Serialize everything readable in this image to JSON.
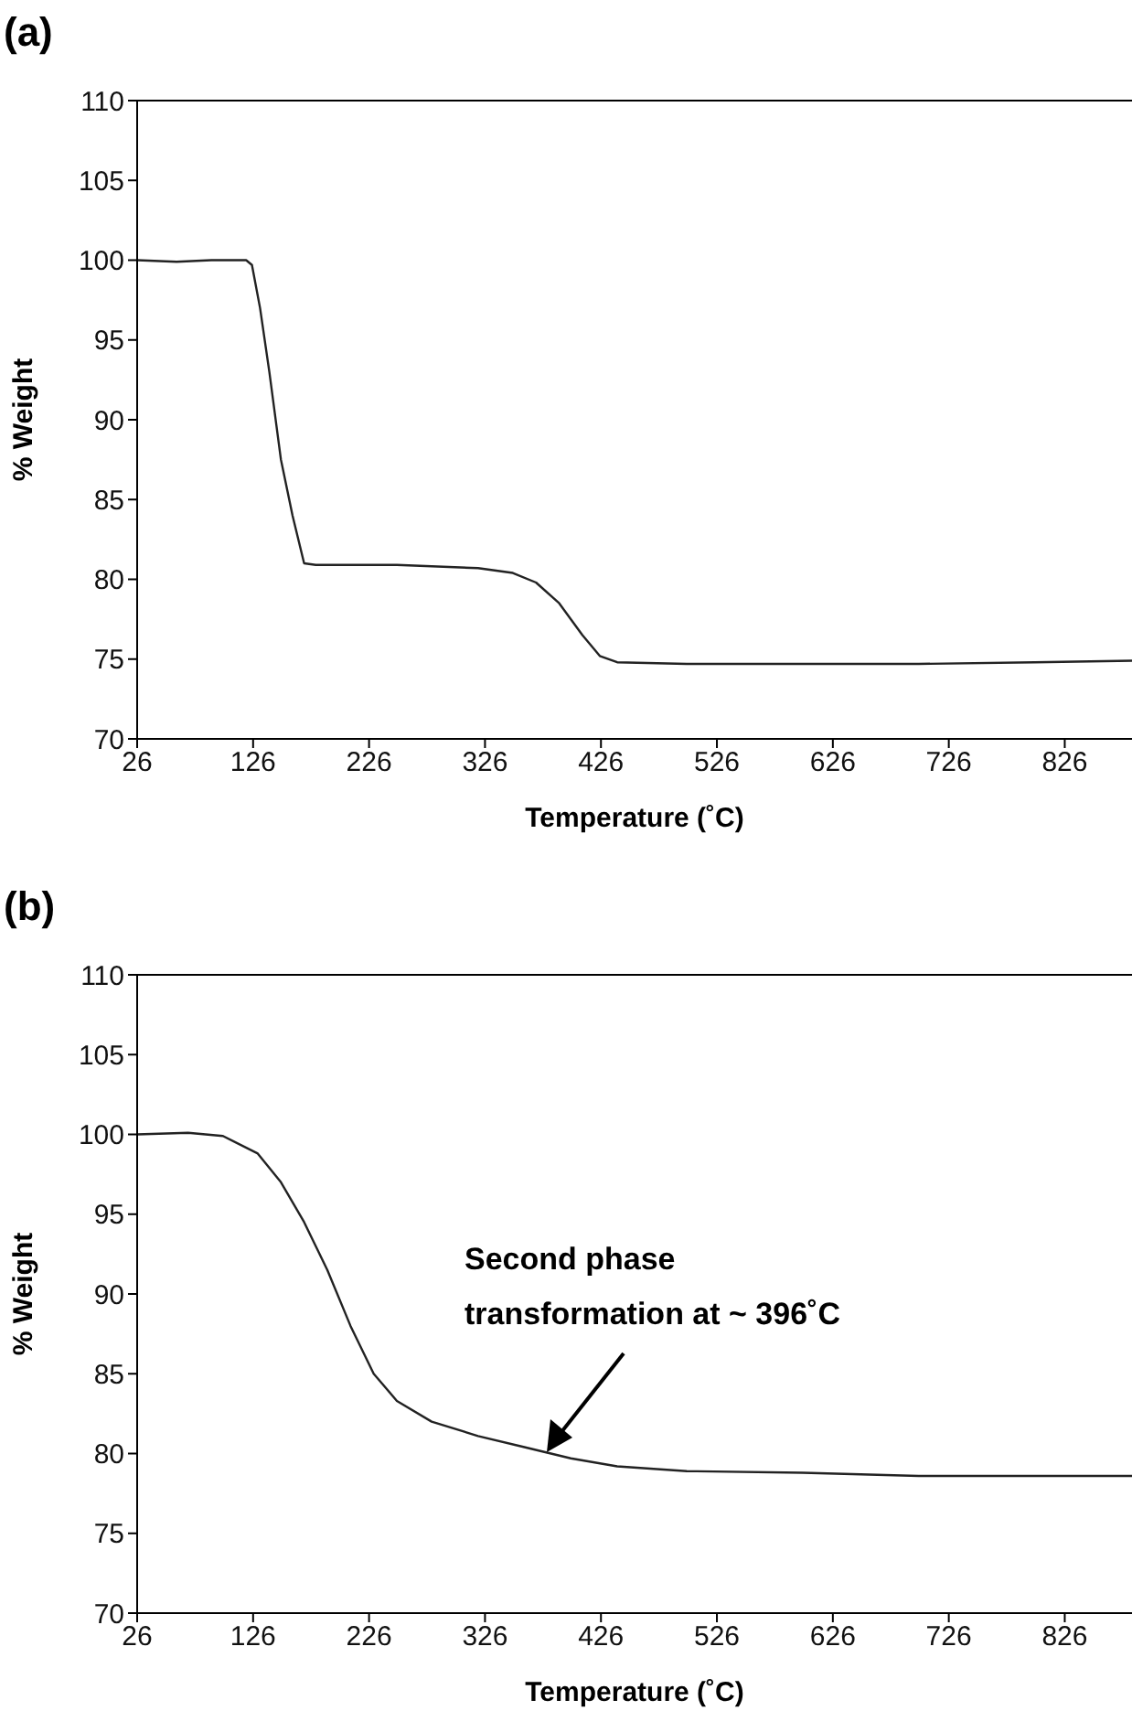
{
  "chart_data": [
    {
      "type": "line",
      "title": "(a)",
      "xlabel": "Temperature (˚C)",
      "ylabel": "% Weight",
      "color": "#222222",
      "x": [
        26,
        60,
        90,
        120,
        125,
        132,
        140,
        150,
        160,
        170,
        180,
        250,
        320,
        350,
        370,
        390,
        410,
        425,
        440,
        500,
        600,
        700,
        800,
        884
      ],
      "values": [
        100,
        99.9,
        100,
        100,
        99.7,
        97,
        93,
        87.5,
        84,
        81,
        80.9,
        80.9,
        80.7,
        80.4,
        79.8,
        78.5,
        76.5,
        75.2,
        74.8,
        74.7,
        74.7,
        74.7,
        74.8,
        74.9
      ],
      "xlim": [
        26,
        884
      ],
      "xticks": [
        26,
        126,
        226,
        326,
        426,
        526,
        626,
        726,
        826
      ],
      "ylim": [
        70,
        110
      ],
      "yticks": [
        70,
        75,
        80,
        85,
        90,
        95,
        100,
        105,
        110
      ]
    },
    {
      "type": "line",
      "title": "(b)",
      "xlabel": "Temperature (˚C)",
      "ylabel": "% Weight",
      "color": "#222222",
      "x": [
        26,
        70,
        100,
        130,
        150,
        170,
        190,
        210,
        230,
        250,
        280,
        320,
        360,
        400,
        440,
        500,
        600,
        700,
        800,
        884
      ],
      "values": [
        100,
        100.1,
        99.9,
        98.8,
        97,
        94.5,
        91.5,
        88,
        85,
        83.3,
        82,
        81.1,
        80.4,
        79.7,
        79.2,
        78.9,
        78.8,
        78.6,
        78.6,
        78.6
      ],
      "xlim": [
        26,
        884
      ],
      "xticks": [
        26,
        126,
        226,
        326,
        426,
        526,
        626,
        726,
        826
      ],
      "ylim": [
        70,
        110
      ],
      "yticks": [
        70,
        75,
        80,
        85,
        90,
        95,
        100,
        105,
        110
      ],
      "annotations": [
        "Second phase\ntransformation at ~ 396˚C"
      ]
    }
  ]
}
